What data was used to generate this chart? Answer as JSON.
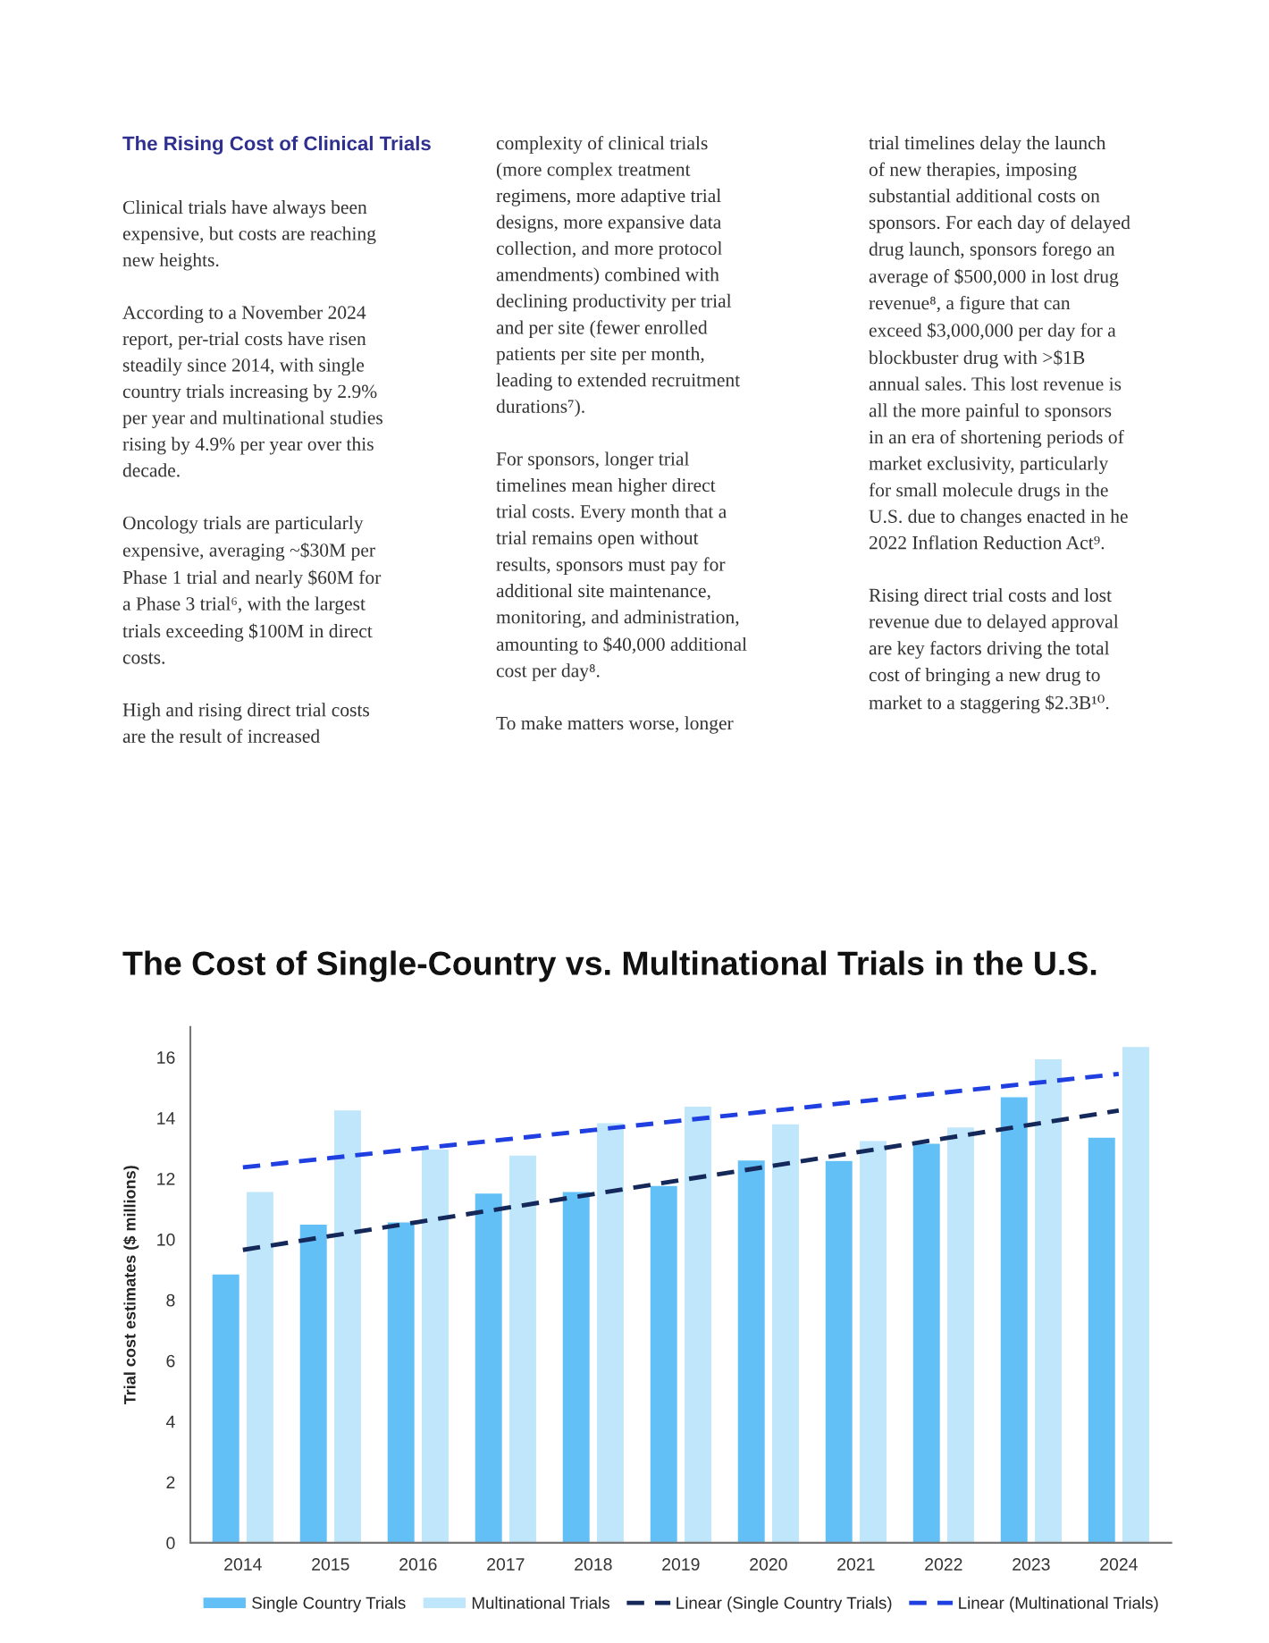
{
  "chart_data": {
    "type": "bar",
    "title": "The Cost of Single-Country vs. Multinational Trials in the U.S.",
    "ylabel": "Trial cost estimates ($ millions)",
    "categories": [
      "2014",
      "2015",
      "2016",
      "2017",
      "2018",
      "2019",
      "2020",
      "2021",
      "2022",
      "2023",
      "2024"
    ],
    "series": [
      {
        "name": "Single Country Trials",
        "color": "#63c0f7",
        "values": [
          8.86,
          10.5,
          10.58,
          11.53,
          11.58,
          11.78,
          12.62,
          12.6,
          13.17,
          14.7,
          13.37
        ]
      },
      {
        "name": "Multinational Trials",
        "color": "#bfe6fa",
        "values": [
          11.58,
          14.27,
          12.98,
          12.78,
          13.85,
          14.39,
          13.81,
          13.26,
          13.71,
          15.95,
          16.36
        ]
      },
      {
        "name": "Linear (Single Country Trials)",
        "type": "line",
        "line_style": "dashed",
        "color": "#14285a",
        "values": [
          9.65,
          10.11,
          10.57,
          11.03,
          11.49,
          11.95,
          12.4,
          12.86,
          13.32,
          13.78,
          14.24
        ]
      },
      {
        "name": "Linear (Multinational Trials)",
        "type": "line",
        "line_style": "dashed",
        "color": "#1f3fe0",
        "values": [
          12.37,
          12.68,
          12.99,
          13.29,
          13.6,
          13.91,
          14.22,
          14.53,
          14.83,
          15.14,
          15.45
        ]
      }
    ],
    "ylim": [
      0,
      17
    ],
    "yticks": [
      0,
      2,
      4,
      6,
      8,
      10,
      12,
      14,
      16
    ],
    "grid": false,
    "legend": "bottom",
    "annotations": [
      "The Rising Cost of Clinical Trials",
      "Clinical trials have always been\nexpensive, but costs are reaching\nnew heights.\n\nAccording to a November 2024\nreport, per-trial costs have risen\nsteadily since 2014, with single\ncountry trials increasing by 2.9%\nper year and multinational studies\nrising by 4.9% per year over this\ndecade.\n\nOncology trials are particularly\nexpensive, averaging ~$30M per\nPhase 1 trial and nearly $60M for\na Phase 3 trial⁶, with the largest\ntrials exceeding $100M in direct\ncosts.\n\nHigh and rising direct trial costs\nare the result of increased",
      "complexity of clinical trials\n(more complex treatment\nregimens, more adaptive trial\ndesigns, more expansive data\ncollection, and more protocol\namendments) combined with\ndeclining productivity per trial\nand per site (fewer enrolled\npatients per site per month,\nleading to extended recruitment\ndurations⁷).\n\nFor sponsors, longer trial\ntimelines mean higher direct\ntrial costs. Every month that a\ntrial remains open without\nresults, sponsors must pay for\nadditional site maintenance,\nmonitoring, and administration,\namounting to $40,000 additional\ncost per day⁸.\n\nTo make matters worse, longer",
      "trial timelines delay the launch\nof new therapies, imposing\nsubstantial additional costs on\nsponsors. For each day of delayed\ndrug launch, sponsors forego an\naverage of $500,000 in lost drug\nrevenue⁸, a figure that can\nexceed $3,000,000 per day for a\nblockbuster drug with >$1B\nannual sales. This lost revenue is\nall the more painful to sponsors\nin an era of shortening periods of\nmarket exclusivity, particularly\nfor small molecule drugs in the\nU.S. due to changes enacted in he\n2022 Inflation Reduction Act⁹.\n\nRising direct trial costs and lost\nrevenue due to delayed approval\nare key factors driving the total\ncost of bringing a new drug to\nmarket to a staggering $2.3B¹⁰."
    ]
  }
}
